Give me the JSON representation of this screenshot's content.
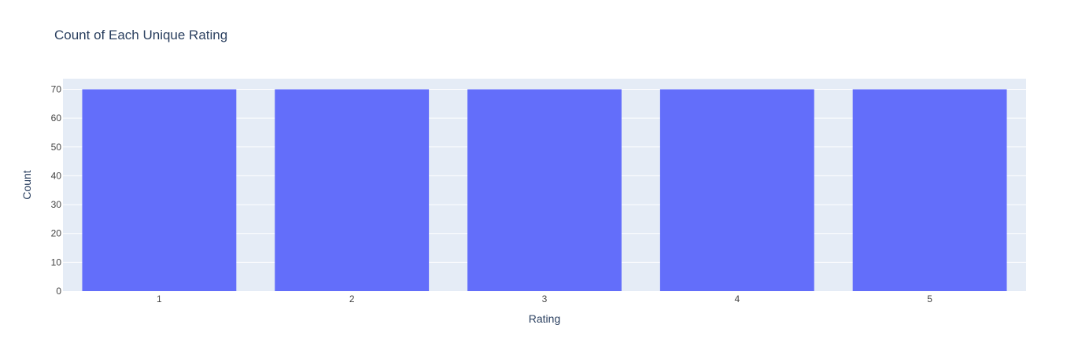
{
  "chart_data": {
    "type": "bar",
    "title": "Count of Each Unique Rating",
    "xlabel": "Rating",
    "ylabel": "Count",
    "categories": [
      "1",
      "2",
      "3",
      "4",
      "5"
    ],
    "values": [
      70,
      70,
      70,
      70,
      70
    ],
    "ylim": [
      0,
      73.68
    ],
    "yticks": [
      0,
      10,
      20,
      30,
      40,
      50,
      60,
      70
    ],
    "grid": true,
    "colors": {
      "bar": "#636efa",
      "plot_background": "#e5ecf6",
      "gridline": "#ffffff",
      "text": "#2a3f5f",
      "tick_text": "#444444"
    }
  }
}
